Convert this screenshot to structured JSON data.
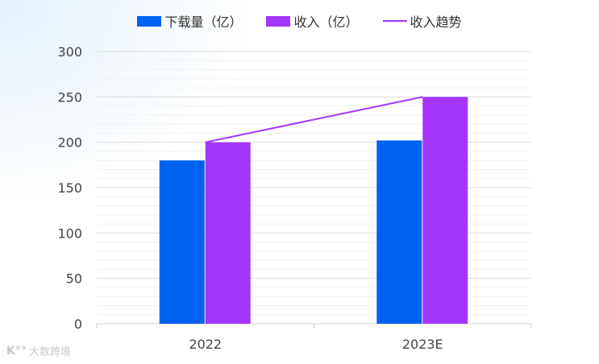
{
  "chart_data": {
    "type": "bar",
    "categories": [
      "2022",
      "2023E"
    ],
    "series": [
      {
        "name": "下载量（亿）",
        "type": "bar",
        "color": "#0062f0",
        "values": [
          180,
          202
        ]
      },
      {
        "name": "收入（亿）",
        "type": "bar",
        "color": "#a336fa",
        "values": [
          200,
          250
        ]
      },
      {
        "name": "收入趋势",
        "type": "line",
        "color": "#a336fa",
        "values": [
          200,
          250
        ]
      }
    ],
    "ylim": [
      0,
      300
    ],
    "yticks": [
      "0",
      "50",
      "100",
      "150",
      "200",
      "250",
      "300"
    ],
    "grid": true,
    "legend": "top"
  },
  "watermark": {
    "text": "大数跨境",
    "logo_text": "K"
  }
}
